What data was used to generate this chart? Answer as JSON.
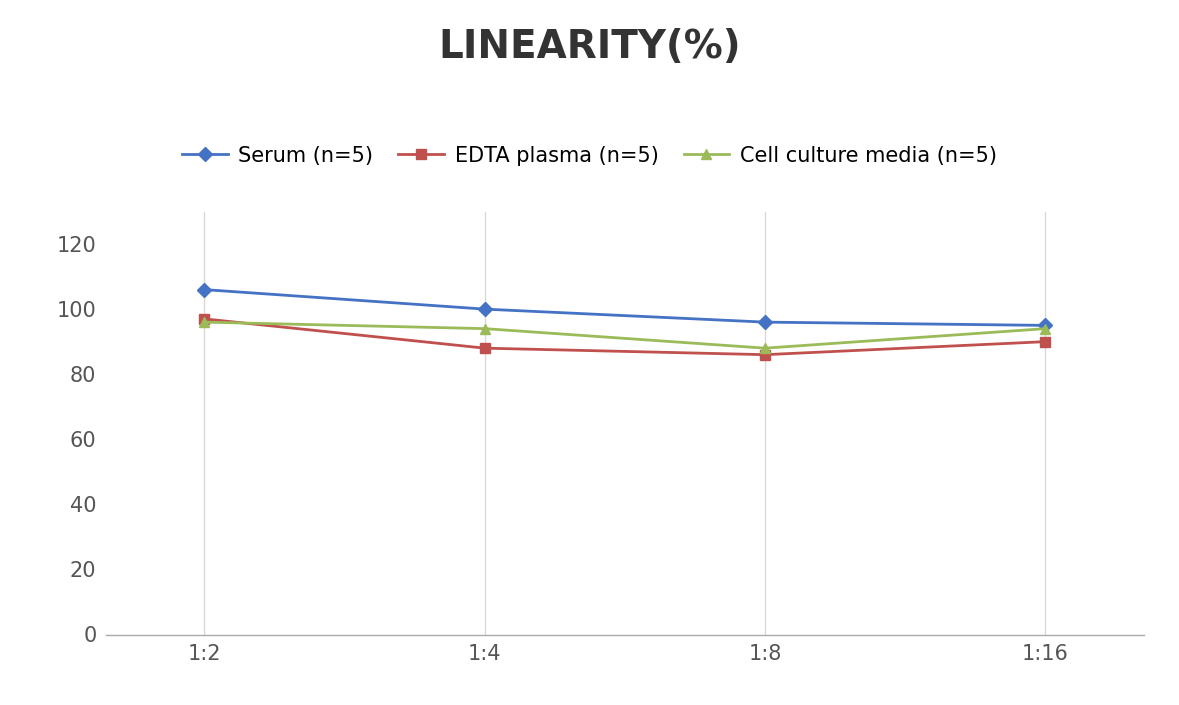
{
  "title": "LINEARITY(%)",
  "x_labels": [
    "1:2",
    "1:4",
    "1:8",
    "1:16"
  ],
  "x_positions": [
    0,
    1,
    2,
    3
  ],
  "series": [
    {
      "label": "Serum (n=5)",
      "values": [
        106,
        100,
        96,
        95
      ],
      "color": "#4472C4",
      "marker": "D",
      "markersize": 7,
      "linewidth": 2
    },
    {
      "label": "EDTA plasma (n=5)",
      "values": [
        97,
        88,
        86,
        90
      ],
      "color": "#C0504D",
      "marker": "s",
      "markersize": 7,
      "linewidth": 2
    },
    {
      "label": "Cell culture media (n=5)",
      "values": [
        96,
        94,
        88,
        94
      ],
      "color": "#9BBB59",
      "marker": "^",
      "markersize": 7,
      "linewidth": 2
    }
  ],
  "ylim": [
    0,
    130
  ],
  "yticks": [
    0,
    20,
    40,
    60,
    80,
    100,
    120
  ],
  "grid_color": "#D8D8D8",
  "background_color": "#FFFFFF",
  "title_fontsize": 28,
  "tick_fontsize": 15,
  "legend_fontsize": 15
}
